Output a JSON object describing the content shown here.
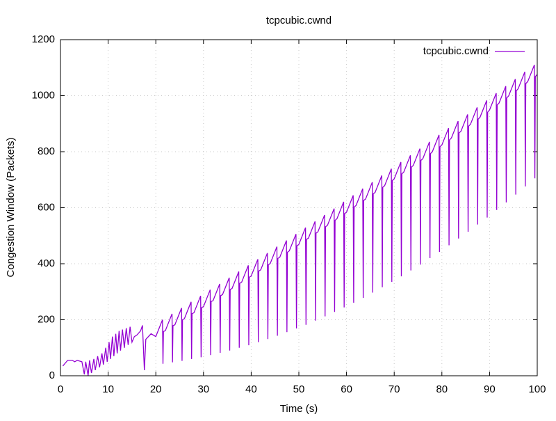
{
  "chart_data": {
    "type": "line",
    "title": "tcpcubic.cwnd",
    "xlabel": "Time (s)",
    "ylabel": "Congestion Window (Packets)",
    "xlim": [
      0,
      100
    ],
    "ylim": [
      0,
      1200
    ],
    "xticks": [
      0,
      10,
      20,
      30,
      40,
      50,
      60,
      70,
      80,
      90,
      100
    ],
    "yticks": [
      0,
      200,
      400,
      600,
      800,
      1000,
      1200
    ],
    "grid": true,
    "legend": "top right",
    "x": [
      0.5,
      1,
      1.5,
      2.5,
      3,
      3.5,
      4.5,
      5,
      5.3,
      5.8,
      6.1,
      6.5,
      7,
      7.3,
      7.8,
      8.2,
      8.7,
      9,
      9.5,
      9.8,
      10.2,
      10.5,
      10.9,
      11.2,
      11.6,
      11.9,
      12.3,
      12.6,
      13,
      13.4,
      13.8,
      14.2,
      14.6,
      15,
      15.5,
      16,
      16.8,
      17.2,
      17.6,
      17.9,
      19,
      20,
      21.4,
      21.5,
      21.6,
      22,
      23.4,
      23.5,
      23.6,
      24,
      25.4,
      25.5,
      25.6,
      26,
      27.4,
      27.5,
      27.6,
      28,
      29.4,
      29.5,
      29.6,
      30,
      31.4,
      31.5,
      31.6,
      32,
      33.4,
      33.5,
      33.6,
      34,
      35.4,
      35.5,
      35.6,
      36,
      37.4,
      37.5,
      37.6,
      38,
      39.4,
      39.5,
      39.6,
      40,
      41.4,
      41.5,
      41.6,
      42,
      43.4,
      43.5,
      43.6,
      44,
      45.4,
      45.5,
      45.6,
      46,
      47.4,
      47.5,
      47.6,
      48,
      49.4,
      49.5,
      49.6,
      50,
      51.4,
      51.5,
      51.6,
      52,
      53.4,
      53.5,
      53.6,
      54,
      55.4,
      55.5,
      55.6,
      56,
      57.4,
      57.5,
      57.6,
      58,
      59.4,
      59.5,
      59.6,
      60,
      61.4,
      61.5,
      61.6,
      62,
      63.4,
      63.5,
      63.6,
      64,
      65.4,
      65.5,
      65.6,
      66,
      67.4,
      67.5,
      67.6,
      68,
      69.4,
      69.5,
      69.6,
      70,
      71.4,
      71.5,
      71.6,
      72,
      73.4,
      73.5,
      73.6,
      74,
      75.4,
      75.5,
      75.6,
      76,
      77.4,
      77.5,
      77.6,
      78,
      79.4,
      79.5,
      79.6,
      80,
      81.4,
      81.5,
      81.6,
      82,
      83.4,
      83.5,
      83.6,
      84,
      85.4,
      85.5,
      85.6,
      86,
      87.4,
      87.5,
      87.6,
      88,
      89.4,
      89.5,
      89.6,
      90,
      91.4,
      91.5,
      91.6,
      92,
      93.4,
      93.5,
      93.6,
      94,
      95.4,
      95.5,
      95.6,
      96,
      97.4,
      97.5,
      97.6,
      98,
      99.4,
      99.5,
      99.6,
      100
    ],
    "series": [
      {
        "name": "tcpcubic.cwnd",
        "color": "#9400d3",
        "values": [
          35,
          45,
          55,
          55,
          50,
          55,
          50,
          5,
          50,
          0,
          55,
          10,
          60,
          20,
          70,
          30,
          80,
          40,
          100,
          50,
          120,
          60,
          140,
          70,
          150,
          80,
          160,
          90,
          165,
          100,
          170,
          110,
          175,
          120,
          140,
          145,
          160,
          180,
          20,
          130,
          150,
          140,
          200,
          43,
          158,
          161,
          221,
          48,
          179,
          182,
          242,
          53,
          200,
          204,
          264,
          60,
          222,
          225,
          285,
          66,
          243,
          247,
          307,
          74,
          265,
          268,
          328,
          82,
          286,
          290,
          350,
          90,
          308,
          312,
          372,
          100,
          330,
          334,
          394,
          109,
          352,
          356,
          416,
          120,
          374,
          378,
          438,
          131,
          396,
          401,
          461,
          143,
          419,
          423,
          483,
          156,
          441,
          446,
          506,
          169,
          464,
          469,
          529,
          182,
          487,
          491,
          551,
          197,
          509,
          514,
          574,
          212,
          532,
          537,
          597,
          228,
          555,
          561,
          621,
          244,
          579,
          584,
          644,
          261,
          602,
          608,
          668,
          278,
          626,
          631,
          691,
          297,
          649,
          655,
          715,
          316,
          673,
          679,
          739,
          335,
          697,
          703,
          763,
          355,
          721,
          727,
          787,
          376,
          745,
          751,
          811,
          397,
          769,
          775,
          835,
          420,
          793,
          800,
          860,
          442,
          818,
          824,
          884,
          466,
          842,
          849,
          909,
          490,
          867,
          873,
          933,
          514,
          891,
          898,
          958,
          540,
          916,
          923,
          983,
          565,
          941,
          949,
          1009,
          592,
          967,
          974,
          1034,
          619,
          992,
          999,
          1059,
          647,
          1017,
          1025,
          1085,
          676,
          1043,
          1050,
          1110,
          705,
          1068,
          1076
        ]
      }
    ]
  }
}
